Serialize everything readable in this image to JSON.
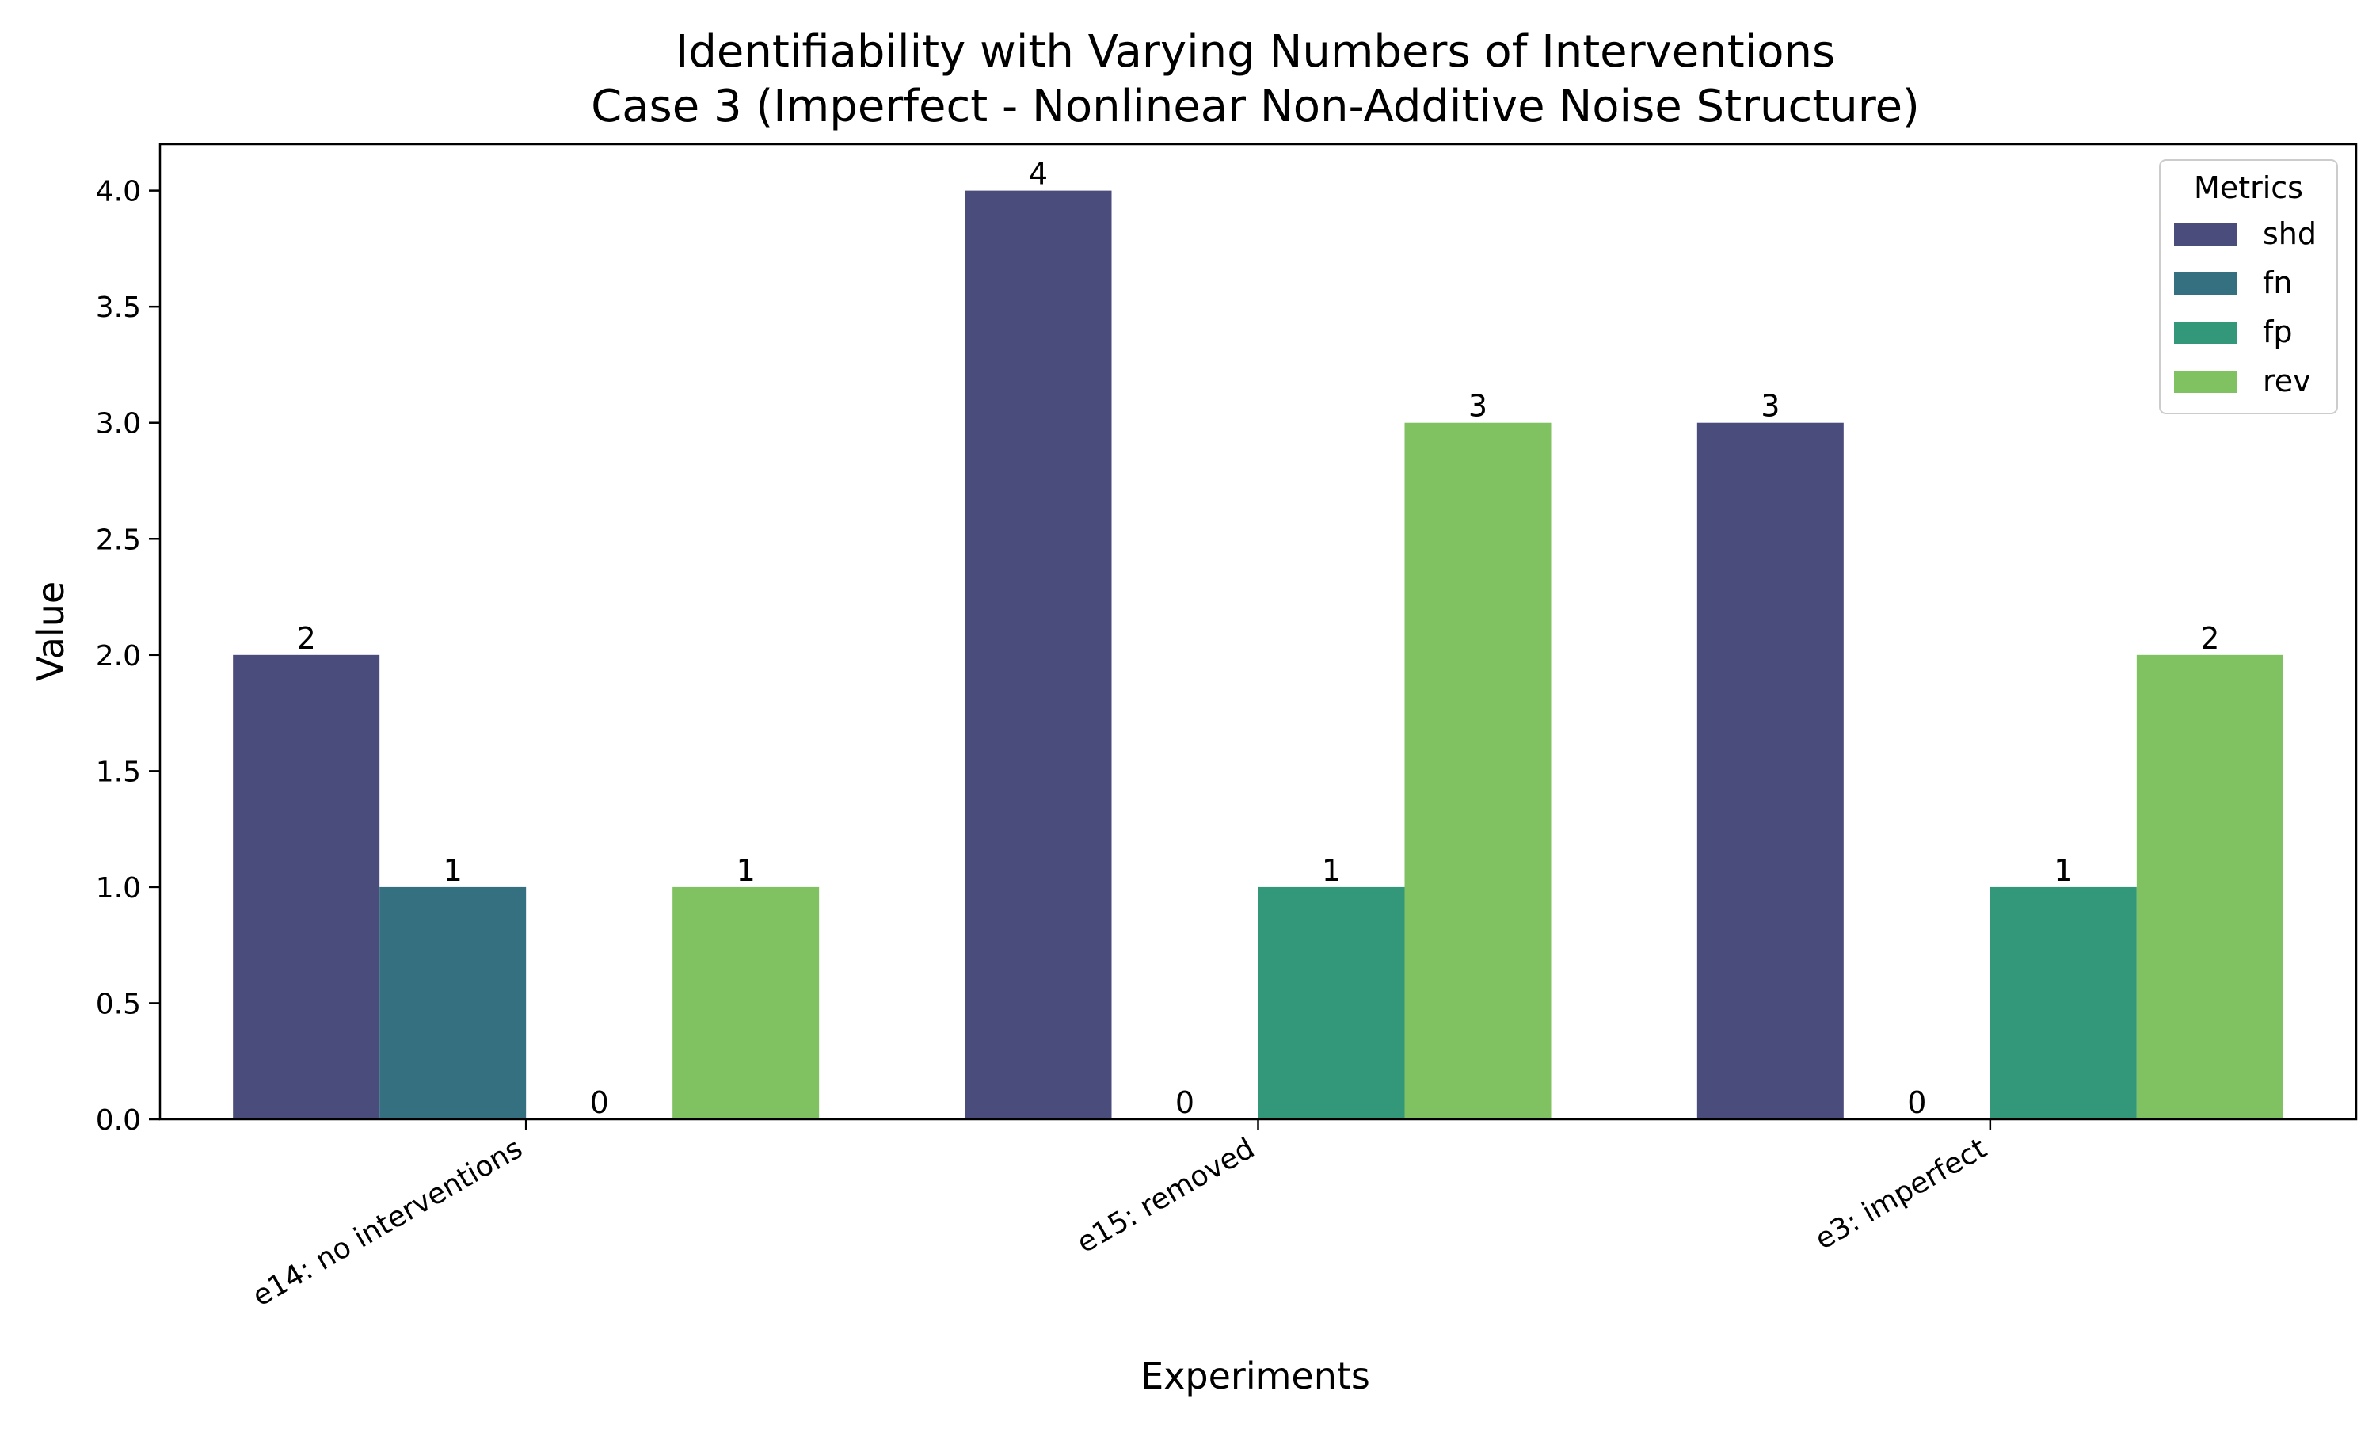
{
  "chart_data": {
    "type": "bar",
    "title": "Identifiability with Varying Numbers of Interventions",
    "subtitle": "Case 3 (Imperfect - Nonlinear Non-Additive Noise Structure)",
    "xlabel": "Experiments",
    "ylabel": "Value",
    "categories": [
      "e14: no interventions",
      "e15: removed",
      "e3: imperfect"
    ],
    "series": [
      {
        "name": "shd",
        "values": [
          2,
          4,
          3
        ],
        "color": "#4a4c7b"
      },
      {
        "name": "fn",
        "values": [
          1,
          0,
          0
        ],
        "color": "#357080"
      },
      {
        "name": "fp",
        "values": [
          0,
          1,
          1
        ],
        "color": "#33987a"
      },
      {
        "name": "rev",
        "values": [
          1,
          3,
          2
        ],
        "color": "#80c261"
      }
    ],
    "ylim": [
      0,
      4.2
    ],
    "yticks": [
      "0.0",
      "0.5",
      "1.0",
      "1.5",
      "2.0",
      "2.5",
      "3.0",
      "3.5",
      "4.0"
    ],
    "legend": {
      "title": "Metrics",
      "position": "top-right"
    },
    "grid": false,
    "data_labels": true
  }
}
